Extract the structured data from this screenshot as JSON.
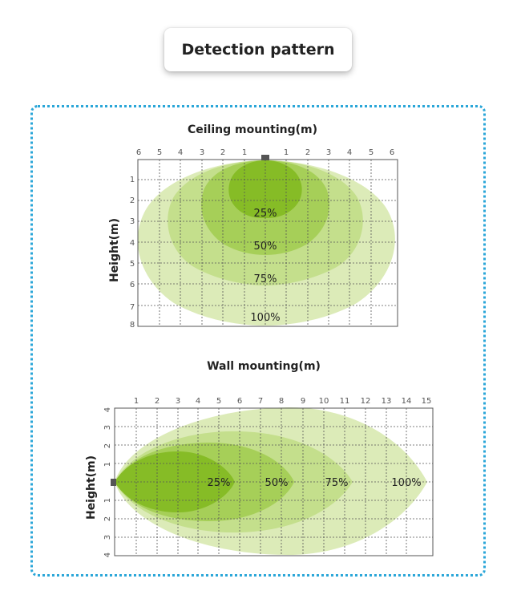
{
  "header": {
    "title": "Detection pattern"
  },
  "ceiling": {
    "title": "Ceiling mounting(m)",
    "ylabel": "Height(m)",
    "x_ticks": [
      "6",
      "5",
      "4",
      "3",
      "2",
      "1",
      "1",
      "2",
      "3",
      "4",
      "5",
      "6"
    ],
    "y_ticks": [
      "1",
      "2",
      "3",
      "4",
      "5",
      "6",
      "7",
      "8"
    ],
    "zones": [
      {
        "label": "100%",
        "color": "#dcebb8"
      },
      {
        "label": "75%",
        "color": "#c4df8c"
      },
      {
        "label": "50%",
        "color": "#a6cf58"
      },
      {
        "label": "25%",
        "color": "#86bc26"
      }
    ]
  },
  "wall": {
    "title": "Wall mounting(m)",
    "ylabel": "Height(m)",
    "x_ticks": [
      "1",
      "2",
      "3",
      "4",
      "5",
      "6",
      "7",
      "8",
      "9",
      "10",
      "11",
      "12",
      "13",
      "14",
      "15"
    ],
    "y_ticks_top": [
      "4",
      "3",
      "2",
      "1"
    ],
    "y_ticks_bottom": [
      "1",
      "2",
      "3",
      "4"
    ],
    "zones": [
      {
        "label": "100%",
        "color": "#dcebb8"
      },
      {
        "label": "75%",
        "color": "#c4df8c"
      },
      {
        "label": "50%",
        "color": "#a6cf58"
      },
      {
        "label": "25%",
        "color": "#86bc26"
      }
    ]
  }
}
